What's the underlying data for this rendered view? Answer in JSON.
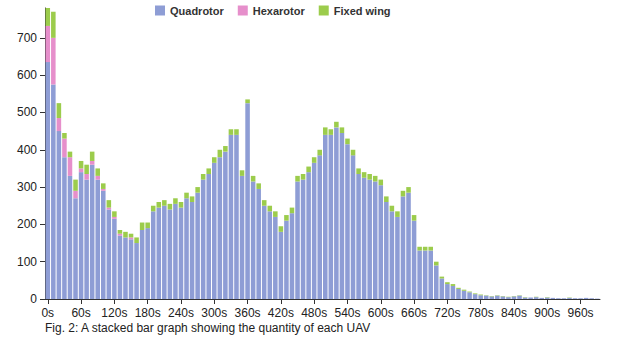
{
  "chart_data": {
    "type": "bar",
    "stacked": true,
    "legend": "top",
    "grid": false,
    "caption": "Fig. 2: A stacked bar graph showing the quantity of each UAV",
    "categories": [
      "0s",
      null,
      null,
      null,
      null,
      null,
      "60s",
      null,
      null,
      null,
      null,
      null,
      "120s",
      null,
      null,
      null,
      null,
      null,
      "180s",
      null,
      null,
      null,
      null,
      null,
      "240s",
      null,
      null,
      null,
      null,
      null,
      "300s",
      null,
      null,
      null,
      null,
      null,
      "360s",
      null,
      null,
      null,
      null,
      null,
      "420s",
      null,
      null,
      null,
      null,
      null,
      "480s",
      null,
      null,
      null,
      null,
      null,
      "540s",
      null,
      null,
      null,
      null,
      null,
      "600s",
      null,
      null,
      null,
      null,
      null,
      "660s",
      null,
      null,
      null,
      null,
      null,
      "720s",
      null,
      null,
      null,
      null,
      null,
      "780s",
      null,
      null,
      null,
      null,
      null,
      "840s",
      null,
      null,
      null,
      null,
      null,
      "900s",
      null,
      null,
      null,
      null,
      null,
      "960s",
      null,
      null,
      null
    ],
    "ylim": [
      0,
      780
    ],
    "yticks": [
      0,
      100,
      200,
      300,
      400,
      500,
      600,
      700
    ],
    "series": [
      {
        "name": "Quadrotor",
        "color": "#8e9dd5",
        "values": [
          635,
          575,
          450,
          380,
          330,
          270,
          340,
          320,
          360,
          320,
          290,
          240,
          215,
          170,
          165,
          160,
          150,
          185,
          190,
          235,
          245,
          250,
          240,
          255,
          245,
          270,
          260,
          285,
          320,
          335,
          365,
          380,
          395,
          440,
          440,
          330,
          525,
          315,
          295,
          250,
          235,
          220,
          180,
          210,
          230,
          315,
          320,
          340,
          365,
          385,
          440,
          440,
          460,
          445,
          415,
          385,
          335,
          325,
          320,
          315,
          305,
          260,
          235,
          220,
          275,
          285,
          210,
          130,
          130,
          130,
          90,
          55,
          40,
          35,
          27,
          22,
          18,
          13,
          10,
          9,
          7,
          9,
          7,
          5,
          7,
          9,
          4,
          4,
          5,
          3,
          4,
          3,
          2,
          2,
          3,
          2,
          2,
          3,
          2,
          1
        ]
      },
      {
        "name": "Hexarotor",
        "color": "#e68fcb",
        "values": [
          97,
          125,
          35,
          50,
          50,
          20,
          10,
          15,
          10,
          10,
          5,
          5,
          5,
          5,
          0,
          5,
          0,
          0,
          0,
          0,
          0,
          0,
          0,
          0,
          0,
          0,
          0,
          0,
          0,
          0,
          0,
          0,
          0,
          0,
          0,
          0,
          0,
          0,
          0,
          0,
          0,
          0,
          0,
          0,
          0,
          0,
          0,
          0,
          0,
          0,
          0,
          0,
          0,
          0,
          0,
          0,
          0,
          0,
          0,
          0,
          0,
          0,
          0,
          0,
          0,
          0,
          0,
          0,
          0,
          0,
          0,
          0,
          0,
          0,
          0,
          0,
          0,
          0,
          0,
          0,
          0,
          0,
          0,
          0,
          0,
          0,
          0,
          0,
          0,
          0,
          0,
          0,
          0,
          0,
          0,
          0,
          0,
          0,
          0,
          0
        ]
      },
      {
        "name": "Fixed wing",
        "color": "#9ccc4c",
        "values": [
          48,
          70,
          40,
          15,
          15,
          30,
          20,
          25,
          25,
          20,
          15,
          20,
          15,
          10,
          15,
          10,
          15,
          20,
          15,
          15,
          15,
          15,
          15,
          15,
          15,
          15,
          15,
          15,
          15,
          15,
          15,
          20,
          15,
          15,
          15,
          15,
          10,
          15,
          15,
          15,
          15,
          15,
          15,
          15,
          15,
          15,
          15,
          15,
          15,
          15,
          20,
          15,
          15,
          15,
          15,
          15,
          15,
          15,
          15,
          15,
          15,
          15,
          15,
          15,
          15,
          15,
          15,
          10,
          10,
          10,
          10,
          5,
          5,
          5,
          3,
          3,
          2,
          2,
          2,
          1,
          1,
          1,
          1,
          1,
          1,
          1,
          1,
          0,
          1,
          0,
          1,
          0,
          0,
          0,
          1,
          0,
          0,
          0,
          0,
          0
        ]
      }
    ]
  }
}
